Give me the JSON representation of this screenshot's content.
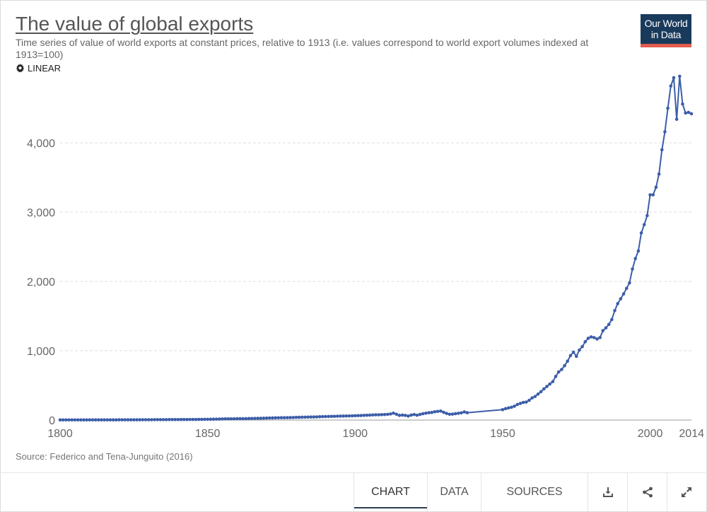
{
  "header": {
    "title": "The value of global exports",
    "subtitle": "Time series of value of world exports at constant prices, relative to 1913 (i.e. values correspond to world export volumes indexed at 1913=100)",
    "scale_label": "LINEAR",
    "logo_line1": "Our World",
    "logo_line2": "in Data"
  },
  "source": "Source: Federico and Tena-Junguito (2016)",
  "footer": {
    "tabs": [
      {
        "label": "CHART",
        "active": true
      },
      {
        "label": "DATA",
        "active": false
      },
      {
        "label": "SOURCES",
        "active": false
      }
    ],
    "icons": [
      "download-icon",
      "share-icon",
      "expand-icon"
    ]
  },
  "colors": {
    "line": "#3c5da8",
    "grid": "#dddddd",
    "accent": "#e25d4f",
    "logo_bg": "#1a3a5c"
  },
  "chart_data": {
    "type": "line",
    "title": "The value of global exports",
    "xlabel": "",
    "ylabel": "",
    "xlim": [
      1800,
      2014
    ],
    "ylim": [
      0,
      4900
    ],
    "x_ticks": [
      1800,
      1850,
      1900,
      1950,
      2000,
      2014
    ],
    "x_tick_labels": [
      "1800",
      "1850",
      "1900",
      "1950",
      "2000",
      "2014"
    ],
    "y_ticks": [
      0,
      1000,
      2000,
      3000,
      4000
    ],
    "y_tick_labels": [
      "0",
      "1,000",
      "2,000",
      "3,000",
      "4,000"
    ],
    "grid": true,
    "series": [
      {
        "name": "",
        "x": [
          1800,
          1801,
          1802,
          1803,
          1804,
          1805,
          1806,
          1807,
          1808,
          1809,
          1810,
          1811,
          1812,
          1813,
          1814,
          1815,
          1816,
          1817,
          1818,
          1819,
          1820,
          1821,
          1822,
          1823,
          1824,
          1825,
          1826,
          1827,
          1828,
          1829,
          1830,
          1831,
          1832,
          1833,
          1834,
          1835,
          1836,
          1837,
          1838,
          1839,
          1840,
          1841,
          1842,
          1843,
          1844,
          1845,
          1846,
          1847,
          1848,
          1849,
          1850,
          1851,
          1852,
          1853,
          1854,
          1855,
          1856,
          1857,
          1858,
          1859,
          1860,
          1861,
          1862,
          1863,
          1864,
          1865,
          1866,
          1867,
          1868,
          1869,
          1870,
          1871,
          1872,
          1873,
          1874,
          1875,
          1876,
          1877,
          1878,
          1879,
          1880,
          1881,
          1882,
          1883,
          1884,
          1885,
          1886,
          1887,
          1888,
          1889,
          1890,
          1891,
          1892,
          1893,
          1894,
          1895,
          1896,
          1897,
          1898,
          1899,
          1900,
          1901,
          1902,
          1903,
          1904,
          1905,
          1906,
          1907,
          1908,
          1909,
          1910,
          1911,
          1912,
          1913,
          1914,
          1915,
          1916,
          1917,
          1918,
          1919,
          1920,
          1921,
          1922,
          1923,
          1924,
          1925,
          1926,
          1927,
          1928,
          1929,
          1930,
          1931,
          1932,
          1933,
          1934,
          1935,
          1936,
          1937,
          1938,
          1950,
          1951,
          1952,
          1953,
          1954,
          1955,
          1956,
          1957,
          1958,
          1959,
          1960,
          1961,
          1962,
          1963,
          1964,
          1965,
          1966,
          1967,
          1968,
          1969,
          1970,
          1971,
          1972,
          1973,
          1974,
          1975,
          1976,
          1977,
          1978,
          1979,
          1980,
          1981,
          1982,
          1983,
          1984,
          1985,
          1986,
          1987,
          1988,
          1989,
          1990,
          1991,
          1992,
          1993,
          1994,
          1995,
          1996,
          1997,
          1998,
          1999,
          2000,
          2001,
          2002,
          2003,
          2004,
          2005,
          2006,
          2007,
          2008,
          2009,
          2010,
          2011,
          2012,
          2013,
          2014
        ],
        "y": [
          2,
          2,
          2,
          2,
          2,
          2,
          2,
          2,
          2,
          2,
          3,
          3,
          3,
          3,
          3,
          3,
          3,
          3,
          3,
          3,
          4,
          4,
          4,
          4,
          4,
          4,
          4,
          4,
          5,
          5,
          5,
          5,
          6,
          6,
          6,
          6,
          6,
          7,
          7,
          7,
          7,
          8,
          8,
          8,
          9,
          9,
          9,
          10,
          10,
          11,
          11,
          12,
          13,
          14,
          15,
          16,
          18,
          18,
          18,
          19,
          20,
          20,
          20,
          21,
          22,
          23,
          24,
          25,
          26,
          27,
          29,
          30,
          31,
          32,
          33,
          34,
          34,
          35,
          36,
          37,
          39,
          40,
          41,
          42,
          43,
          44,
          45,
          46,
          48,
          50,
          51,
          52,
          53,
          54,
          56,
          57,
          58,
          59,
          60,
          61,
          63,
          64,
          66,
          68,
          70,
          72,
          74,
          76,
          76,
          78,
          80,
          83,
          88,
          100,
          84,
          68,
          72,
          68,
          58,
          72,
          80,
          70,
          82,
          92,
          100,
          106,
          110,
          120,
          125,
          130,
          112,
          96,
          84,
          86,
          92,
          98,
          104,
          118,
          106,
          150,
          165,
          175,
          185,
          200,
          225,
          240,
          255,
          260,
          285,
          320,
          340,
          375,
          410,
          450,
          485,
          520,
          555,
          630,
          695,
          730,
          785,
          850,
          930,
          980,
          920,
          1010,
          1060,
          1130,
          1180,
          1200,
          1190,
          1170,
          1190,
          1290,
          1330,
          1380,
          1450,
          1580,
          1680,
          1750,
          1820,
          1900,
          1980,
          2180,
          2330,
          2440,
          2700,
          2820,
          2950,
          3250,
          3250,
          3360,
          3550,
          3900,
          4160,
          4500,
          4820,
          4940,
          4340,
          4960,
          4560,
          4430,
          4440,
          4420
        ]
      }
    ]
  }
}
